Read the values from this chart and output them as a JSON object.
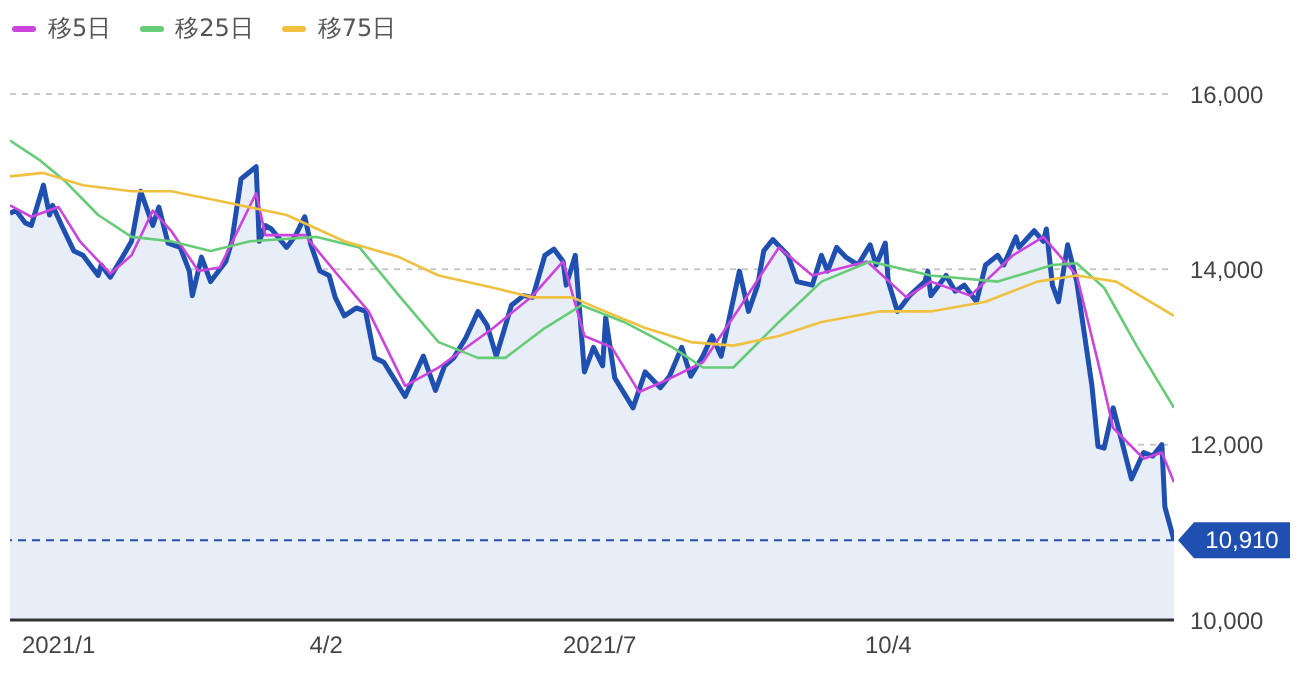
{
  "chart_data": {
    "type": "line",
    "legend": "top left",
    "grid": "y",
    "marker": "none",
    "line_style": "solid",
    "xlim": [
      "2020-12-19",
      "2022-01-06"
    ],
    "xticks": [
      {
        "value": "2021-01-04",
        "label": "2021/1"
      },
      {
        "value": "2021-04-02",
        "label": "4/2"
      },
      {
        "value": "2021-07-01",
        "label": "2021/7"
      },
      {
        "value": "2021-10-04",
        "label": "10/4"
      }
    ],
    "ylim": [
      10000,
      16000
    ],
    "yticks": [
      {
        "value": 10000,
        "label": "10,000"
      },
      {
        "value": 12000,
        "label": "12,000"
      },
      {
        "value": 14000,
        "label": "14,000"
      },
      {
        "value": 16000,
        "label": "16,000"
      }
    ],
    "ref_lines": [
      {
        "axis": "y",
        "value": 10910,
        "label": "10,910",
        "color": "#1f4fb0",
        "line_style": "dashed"
      }
    ],
    "series": [
      {
        "type": "area",
        "color": "#1f4fb0",
        "x": [
          "2020-12-19",
          "2020-12-21",
          "2020-12-24",
          "2020-12-26",
          "2020-12-30",
          "2021-01-01",
          "2021-01-02",
          "2021-01-05",
          "2021-01-09",
          "2021-01-12",
          "2021-01-17",
          "2021-01-18",
          "2021-01-21",
          "2021-01-25",
          "2021-01-28",
          "2021-01-31",
          "2021-02-04",
          "2021-02-06",
          "2021-02-09",
          "2021-02-13",
          "2021-02-16",
          "2021-02-17",
          "2021-02-20",
          "2021-02-23",
          "2021-02-28",
          "2021-03-02",
          "2021-03-05",
          "2021-03-10",
          "2021-03-11",
          "2021-03-13",
          "2021-03-15",
          "2021-03-20",
          "2021-03-23",
          "2021-03-26",
          "2021-03-28",
          "2021-03-31",
          "2021-04-03",
          "2021-04-05",
          "2021-04-08",
          "2021-04-12",
          "2021-04-15",
          "2021-04-18",
          "2021-04-21",
          "2021-04-28",
          "2021-05-04",
          "2021-05-08",
          "2021-05-11",
          "2021-05-14",
          "2021-05-18",
          "2021-05-22",
          "2021-05-25",
          "2021-05-28",
          "2021-06-02",
          "2021-06-06",
          "2021-06-09",
          "2021-06-13",
          "2021-06-16",
          "2021-06-19",
          "2021-06-20",
          "2021-06-23",
          "2021-06-26",
          "2021-06-29",
          "2021-07-02",
          "2021-07-03",
          "2021-07-06",
          "2021-07-12",
          "2021-07-16",
          "2021-07-21",
          "2021-07-24",
          "2021-07-28",
          "2021-07-31",
          "2021-08-04",
          "2021-08-07",
          "2021-08-10",
          "2021-08-16",
          "2021-08-19",
          "2021-08-22",
          "2021-08-24",
          "2021-08-27",
          "2021-09-01",
          "2021-09-04",
          "2021-09-09",
          "2021-09-12",
          "2021-09-14",
          "2021-09-17",
          "2021-09-20",
          "2021-09-24",
          "2021-09-28",
          "2021-09-30",
          "2021-10-03",
          "2021-10-04",
          "2021-10-07",
          "2021-10-11",
          "2021-10-16",
          "2021-10-17",
          "2021-10-18",
          "2021-10-23",
          "2021-10-26",
          "2021-10-29",
          "2021-11-02",
          "2021-11-05",
          "2021-11-09",
          "2021-11-11",
          "2021-11-15",
          "2021-11-16",
          "2021-11-21",
          "2021-11-24",
          "2021-11-25",
          "2021-11-27",
          "2021-11-29",
          "2021-12-02",
          "2021-12-05",
          "2021-12-10",
          "2021-12-12",
          "2021-12-14",
          "2021-12-17",
          "2021-12-23",
          "2021-12-27",
          "2021-12-30",
          "2022-01-02",
          "2022-01-03",
          "2022-01-06"
        ],
        "values": [
          14640,
          14670,
          14530,
          14500,
          14960,
          14620,
          14730,
          14500,
          14210,
          14160,
          13930,
          14050,
          13910,
          14140,
          14320,
          14890,
          14500,
          14710,
          14300,
          14250,
          13980,
          13700,
          14140,
          13860,
          14090,
          14320,
          15030,
          15170,
          14320,
          14500,
          14460,
          14250,
          14390,
          14600,
          14280,
          13980,
          13930,
          13680,
          13470,
          13560,
          13520,
          12990,
          12940,
          12550,
          13010,
          12620,
          12900,
          12990,
          13220,
          13520,
          13360,
          13010,
          13590,
          13700,
          13680,
          14160,
          14230,
          14090,
          13820,
          14160,
          12830,
          13110,
          12900,
          13450,
          12760,
          12420,
          12830,
          12650,
          12780,
          13110,
          12780,
          13010,
          13240,
          13010,
          13980,
          13520,
          13820,
          14210,
          14340,
          14160,
          13860,
          13820,
          14160,
          13980,
          14250,
          14140,
          14050,
          14280,
          14050,
          14300,
          13860,
          13520,
          13700,
          13860,
          13980,
          13700,
          13930,
          13750,
          13820,
          13630,
          14050,
          14160,
          14050,
          14370,
          14250,
          14440,
          14320,
          14460,
          13820,
          13630,
          14280,
          13860,
          12670,
          11980,
          11960,
          12420,
          11610,
          11910,
          11870,
          12000,
          11290,
          10910
        ]
      },
      {
        "name": "移5日",
        "color": "#cc44dd",
        "x": [
          "2020-12-19",
          "2020-12-26",
          "2021-01-04",
          "2021-01-11",
          "2021-01-21",
          "2021-01-28",
          "2021-02-04",
          "2021-02-10",
          "2021-02-19",
          "2021-02-26",
          "2021-03-10",
          "2021-03-13",
          "2021-03-26",
          "2021-04-06",
          "2021-04-16",
          "2021-04-28",
          "2021-05-09",
          "2021-05-27",
          "2021-06-09",
          "2021-06-19",
          "2021-06-26",
          "2021-07-05",
          "2021-07-14",
          "2021-07-22",
          "2021-08-04",
          "2021-08-16",
          "2021-08-29",
          "2021-09-09",
          "2021-09-27",
          "2021-10-10",
          "2021-10-18",
          "2021-10-31",
          "2021-11-14",
          "2021-11-24",
          "2021-12-05",
          "2021-12-12",
          "2021-12-17",
          "2021-12-27",
          "2022-01-02",
          "2022-01-06"
        ],
        "values": [
          14730,
          14600,
          14710,
          14320,
          13950,
          14160,
          14670,
          14440,
          13980,
          14020,
          14870,
          14390,
          14390,
          13930,
          13520,
          12670,
          12880,
          13330,
          13700,
          14090,
          13240,
          13110,
          12600,
          12720,
          12940,
          13560,
          14250,
          13930,
          14090,
          13680,
          13860,
          13700,
          14160,
          14370,
          13930,
          12940,
          12190,
          11840,
          11910,
          11570
        ]
      },
      {
        "name": "移25日",
        "color": "#66cc77",
        "x": [
          "2020-12-19",
          "2020-12-29",
          "2021-01-06",
          "2021-01-17",
          "2021-01-28",
          "2021-02-10",
          "2021-02-23",
          "2021-03-08",
          "2021-03-30",
          "2021-04-13",
          "2021-04-26",
          "2021-05-09",
          "2021-05-22",
          "2021-05-31",
          "2021-06-13",
          "2021-06-25",
          "2021-07-09",
          "2021-07-25",
          "2021-08-04",
          "2021-08-14",
          "2021-08-29",
          "2021-09-12",
          "2021-09-28",
          "2021-10-18",
          "2021-11-09",
          "2021-11-27",
          "2021-12-05",
          "2021-12-14",
          "2021-12-25",
          "2022-01-06"
        ],
        "values": [
          15470,
          15240,
          15010,
          14620,
          14370,
          14320,
          14210,
          14320,
          14370,
          14250,
          13700,
          13170,
          12990,
          12990,
          13330,
          13590,
          13400,
          13110,
          12880,
          12880,
          13400,
          13860,
          14090,
          13930,
          13860,
          14050,
          14070,
          13790,
          13110,
          12420
        ]
      },
      {
        "name": "移75日",
        "color": "#f0c040",
        "x": [
          "2020-12-19",
          "2020-12-30",
          "2021-01-12",
          "2021-01-28",
          "2021-02-10",
          "2021-02-26",
          "2021-03-20",
          "2021-04-08",
          "2021-04-26",
          "2021-05-09",
          "2021-05-27",
          "2021-06-09",
          "2021-06-22",
          "2021-06-30",
          "2021-07-16",
          "2021-07-31",
          "2021-08-14",
          "2021-08-29",
          "2021-09-12",
          "2021-10-01",
          "2021-10-18",
          "2021-11-05",
          "2021-11-22",
          "2021-12-05",
          "2021-12-18",
          "2022-01-06"
        ],
        "values": [
          15060,
          15100,
          14960,
          14890,
          14890,
          14780,
          14620,
          14320,
          14140,
          13930,
          13790,
          13680,
          13680,
          13560,
          13330,
          13170,
          13130,
          13240,
          13400,
          13520,
          13520,
          13630,
          13860,
          13930,
          13860,
          13470
        ]
      }
    ]
  }
}
